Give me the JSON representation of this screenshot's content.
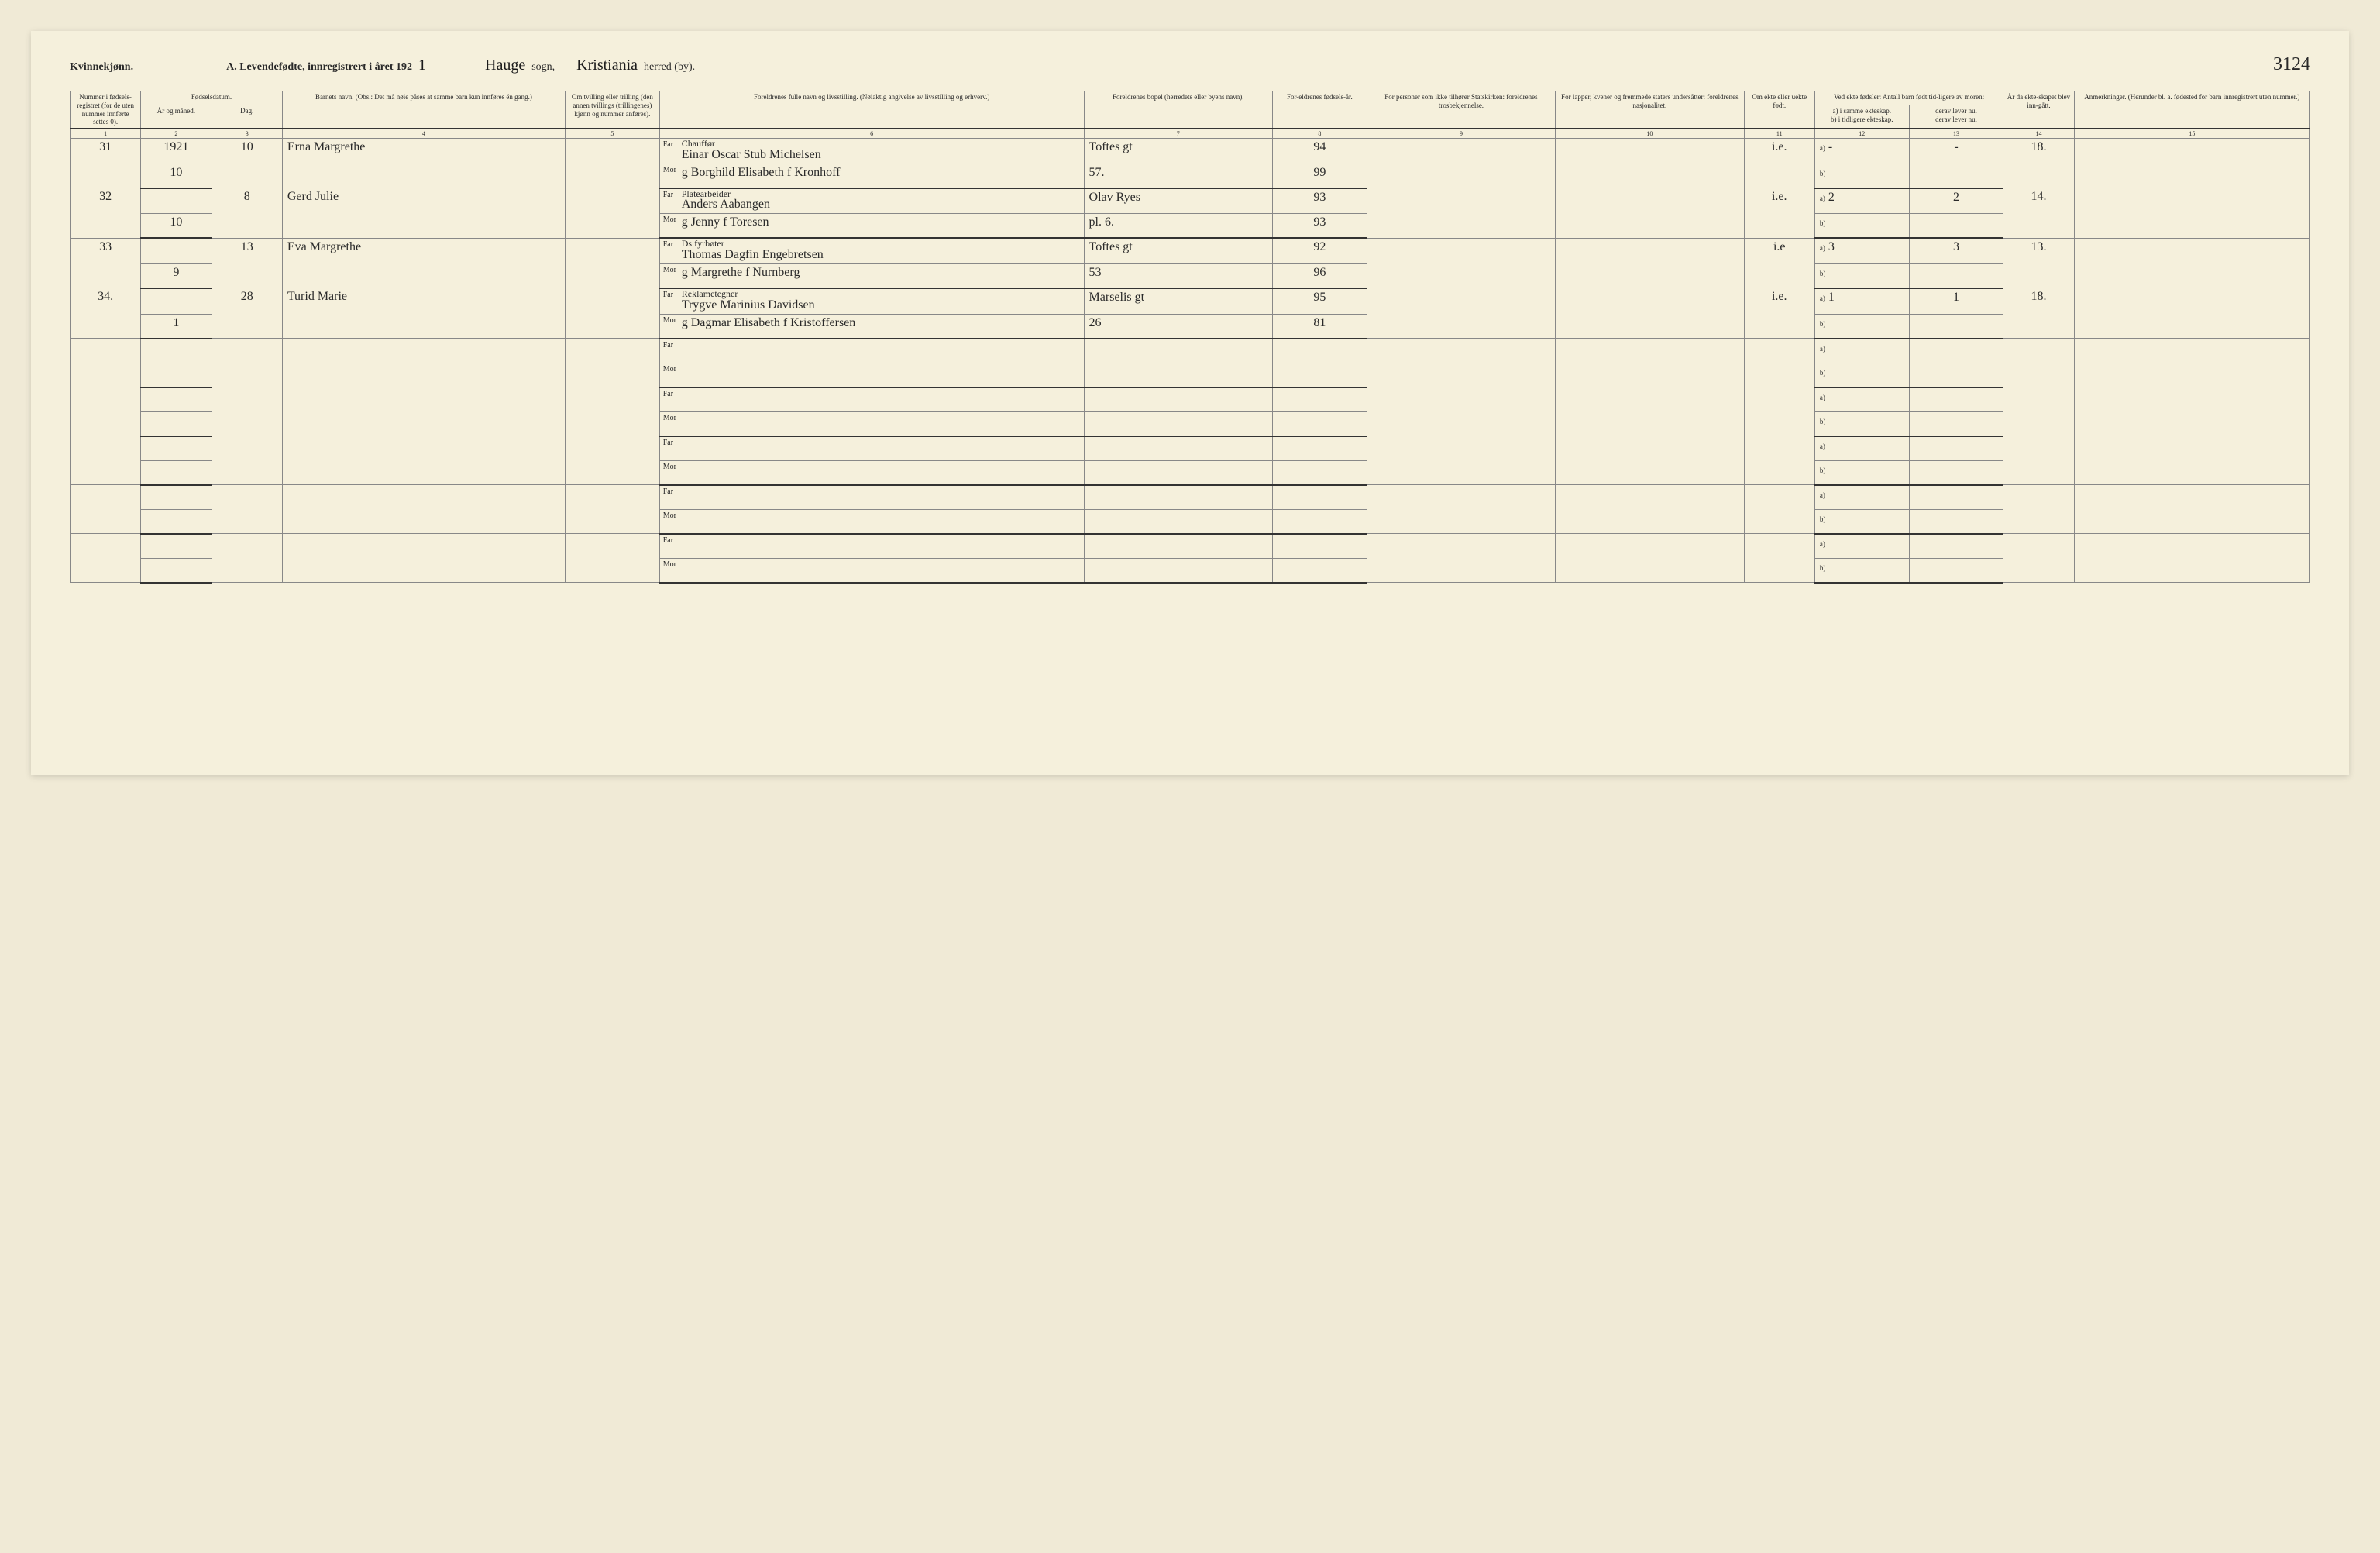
{
  "header": {
    "gender": "Kvinnekjønn.",
    "title_prefix": "A.  Levendefødte, innregistrert i året 192",
    "year_suffix": "1",
    "sogn_label": "sogn,",
    "sogn": "Hauge",
    "herred_label": "herred (by).",
    "herred": "Kristiania",
    "page_number": "3124"
  },
  "columns": {
    "c1": "Nummer i fødsels-registret (for de uten nummer innførte settes 0).",
    "c2_group": "Fødselsdatum.",
    "c2a": "År og måned.",
    "c2b": "Dag.",
    "c4": "Barnets navn.\n(Obs.: Det må nøie påses at samme barn kun innføres én gang.)",
    "c5": "Om tvilling eller trilling (den annen tvillings (trillingenes) kjønn og nummer anføres).",
    "c6": "Foreldrenes fulle navn og livsstilling.\n(Nøiaktig angivelse av livsstilling og erhverv.)",
    "c7": "Foreldrenes bopel (herredets eller byens navn).",
    "c8": "For-eldrenes fødsels-år.",
    "c9": "For personer som ikke tilhører Statskirken: foreldrenes trosbekjennelse.",
    "c10": "For lapper, kvener og fremmede staters undersåtter: foreldrenes nasjonalitet.",
    "c11": "Om ekte eller uekte født.",
    "c12_group": "Ved ekte fødsler: Antall barn født tid-ligere av moren:",
    "c12a": "a) i samme ekteskap.",
    "c12b": "b) i tidligere ekteskap.",
    "c13a": "derav lever nu.",
    "c13b": "derav lever nu.",
    "c14": "År da ekte-skapet blev inn-gått.",
    "c15": "Anmerkninger.\n(Herunder bl. a. fødested for barn innregistrert uten nummer.)"
  },
  "colnums": [
    "1",
    "2",
    "3",
    "4",
    "5",
    "6",
    "7",
    "8",
    "9",
    "10",
    "11",
    "12",
    "13",
    "14",
    "15"
  ],
  "rows": [
    {
      "num": "31",
      "year": "1921",
      "month": "10",
      "day": "10",
      "child": "Erna Margrethe",
      "father_occ": "Chauffør",
      "father": "Einar Oscar Stub Michelsen",
      "mother": "g Borghild Elisabeth f Kronhoff",
      "home": "Toftes gt",
      "home2": "57.",
      "fy": "94",
      "my": "99",
      "legit": "i.e.",
      "prev_a": "-",
      "live_a": "-",
      "marriage": "18."
    },
    {
      "num": "32",
      "month": "10",
      "day": "8",
      "child": "Gerd Julie",
      "father_occ": "Platearbeider",
      "father": "Anders Aabangen",
      "mother": "g Jenny f Toresen",
      "home": "Olav Ryes",
      "home2": "pl. 6.",
      "fy": "93",
      "my": "93",
      "legit": "i.e.",
      "prev_a": "2",
      "live_a": "2",
      "marriage": "14."
    },
    {
      "num": "33",
      "month": "9",
      "day": "13",
      "child": "Eva Margrethe",
      "father_occ": "Ds fyrbøter",
      "father": "Thomas Dagfin Engebretsen",
      "mother": "g Margrethe f Nurnberg",
      "home": "Toftes gt",
      "home2": "53",
      "fy": "92",
      "my": "96",
      "legit": "i.e",
      "prev_a": "3",
      "live_a": "3",
      "marriage": "13."
    },
    {
      "num": "34.",
      "month": "1",
      "day": "28",
      "child": "Turid Marie",
      "father_occ": "Reklametegner",
      "father": "Trygve Marinius Davidsen",
      "mother": "g Dagmar Elisabeth f Kristoffersen",
      "home": "Marselis gt",
      "home2": "26",
      "fy": "95",
      "my": "81",
      "legit": "i.e.",
      "prev_a": "1",
      "live_a": "1",
      "marriage": "18."
    }
  ],
  "empty_rows": 5,
  "labels": {
    "far": "Far",
    "mor": "Mor",
    "a": "a)",
    "b": "b)"
  },
  "style": {
    "bg": "#f5f0dc",
    "page_bg": "#f0ead6",
    "border": "#888",
    "text": "#2a2a2a",
    "handwritten_font": "Brush Script MT"
  }
}
